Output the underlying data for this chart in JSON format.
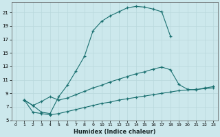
{
  "xlabel": "Humidex (Indice chaleur)",
  "bg_color": "#cce8ec",
  "grid_color": "#b8d8dc",
  "line_color": "#1a7070",
  "xlim": [
    -0.5,
    23.5
  ],
  "ylim": [
    5,
    22.5
  ],
  "xticks": [
    0,
    1,
    2,
    3,
    4,
    5,
    6,
    7,
    8,
    9,
    10,
    11,
    12,
    13,
    14,
    15,
    16,
    17,
    18,
    19,
    20,
    21,
    22,
    23
  ],
  "yticks": [
    5,
    7,
    9,
    11,
    13,
    15,
    17,
    19,
    21
  ],
  "line1_x": [
    1,
    2,
    3,
    4,
    5,
    6,
    7,
    8,
    9,
    10,
    11,
    12,
    13,
    14,
    15,
    16,
    17,
    18
  ],
  "line1_y": [
    8.0,
    7.2,
    6.2,
    6.0,
    8.5,
    10.2,
    12.3,
    14.5,
    18.3,
    19.7,
    20.5,
    21.1,
    21.7,
    21.9,
    21.8,
    21.5,
    21.1,
    17.5
  ],
  "line2_x": [
    1,
    2,
    3,
    4,
    5,
    6,
    7,
    8,
    9,
    10,
    11,
    12,
    13,
    14,
    15,
    16,
    17,
    18,
    19,
    20,
    21,
    22,
    23
  ],
  "line2_y": [
    8.0,
    7.2,
    7.8,
    8.5,
    8.0,
    8.3,
    8.8,
    9.3,
    9.8,
    10.2,
    10.7,
    11.1,
    11.5,
    11.9,
    12.2,
    12.6,
    12.9,
    12.5,
    10.3,
    9.6,
    9.5,
    9.8,
    10.0
  ],
  "line3_x": [
    1,
    2,
    3,
    4,
    5,
    6,
    7,
    8,
    9,
    10,
    11,
    12,
    13,
    14,
    15,
    16,
    17,
    18,
    19,
    20,
    21,
    22,
    23
  ],
  "line3_y": [
    8.0,
    6.2,
    6.0,
    5.8,
    6.0,
    6.3,
    6.6,
    6.9,
    7.2,
    7.5,
    7.7,
    8.0,
    8.2,
    8.4,
    8.6,
    8.8,
    9.0,
    9.2,
    9.4,
    9.5,
    9.6,
    9.7,
    9.8
  ]
}
